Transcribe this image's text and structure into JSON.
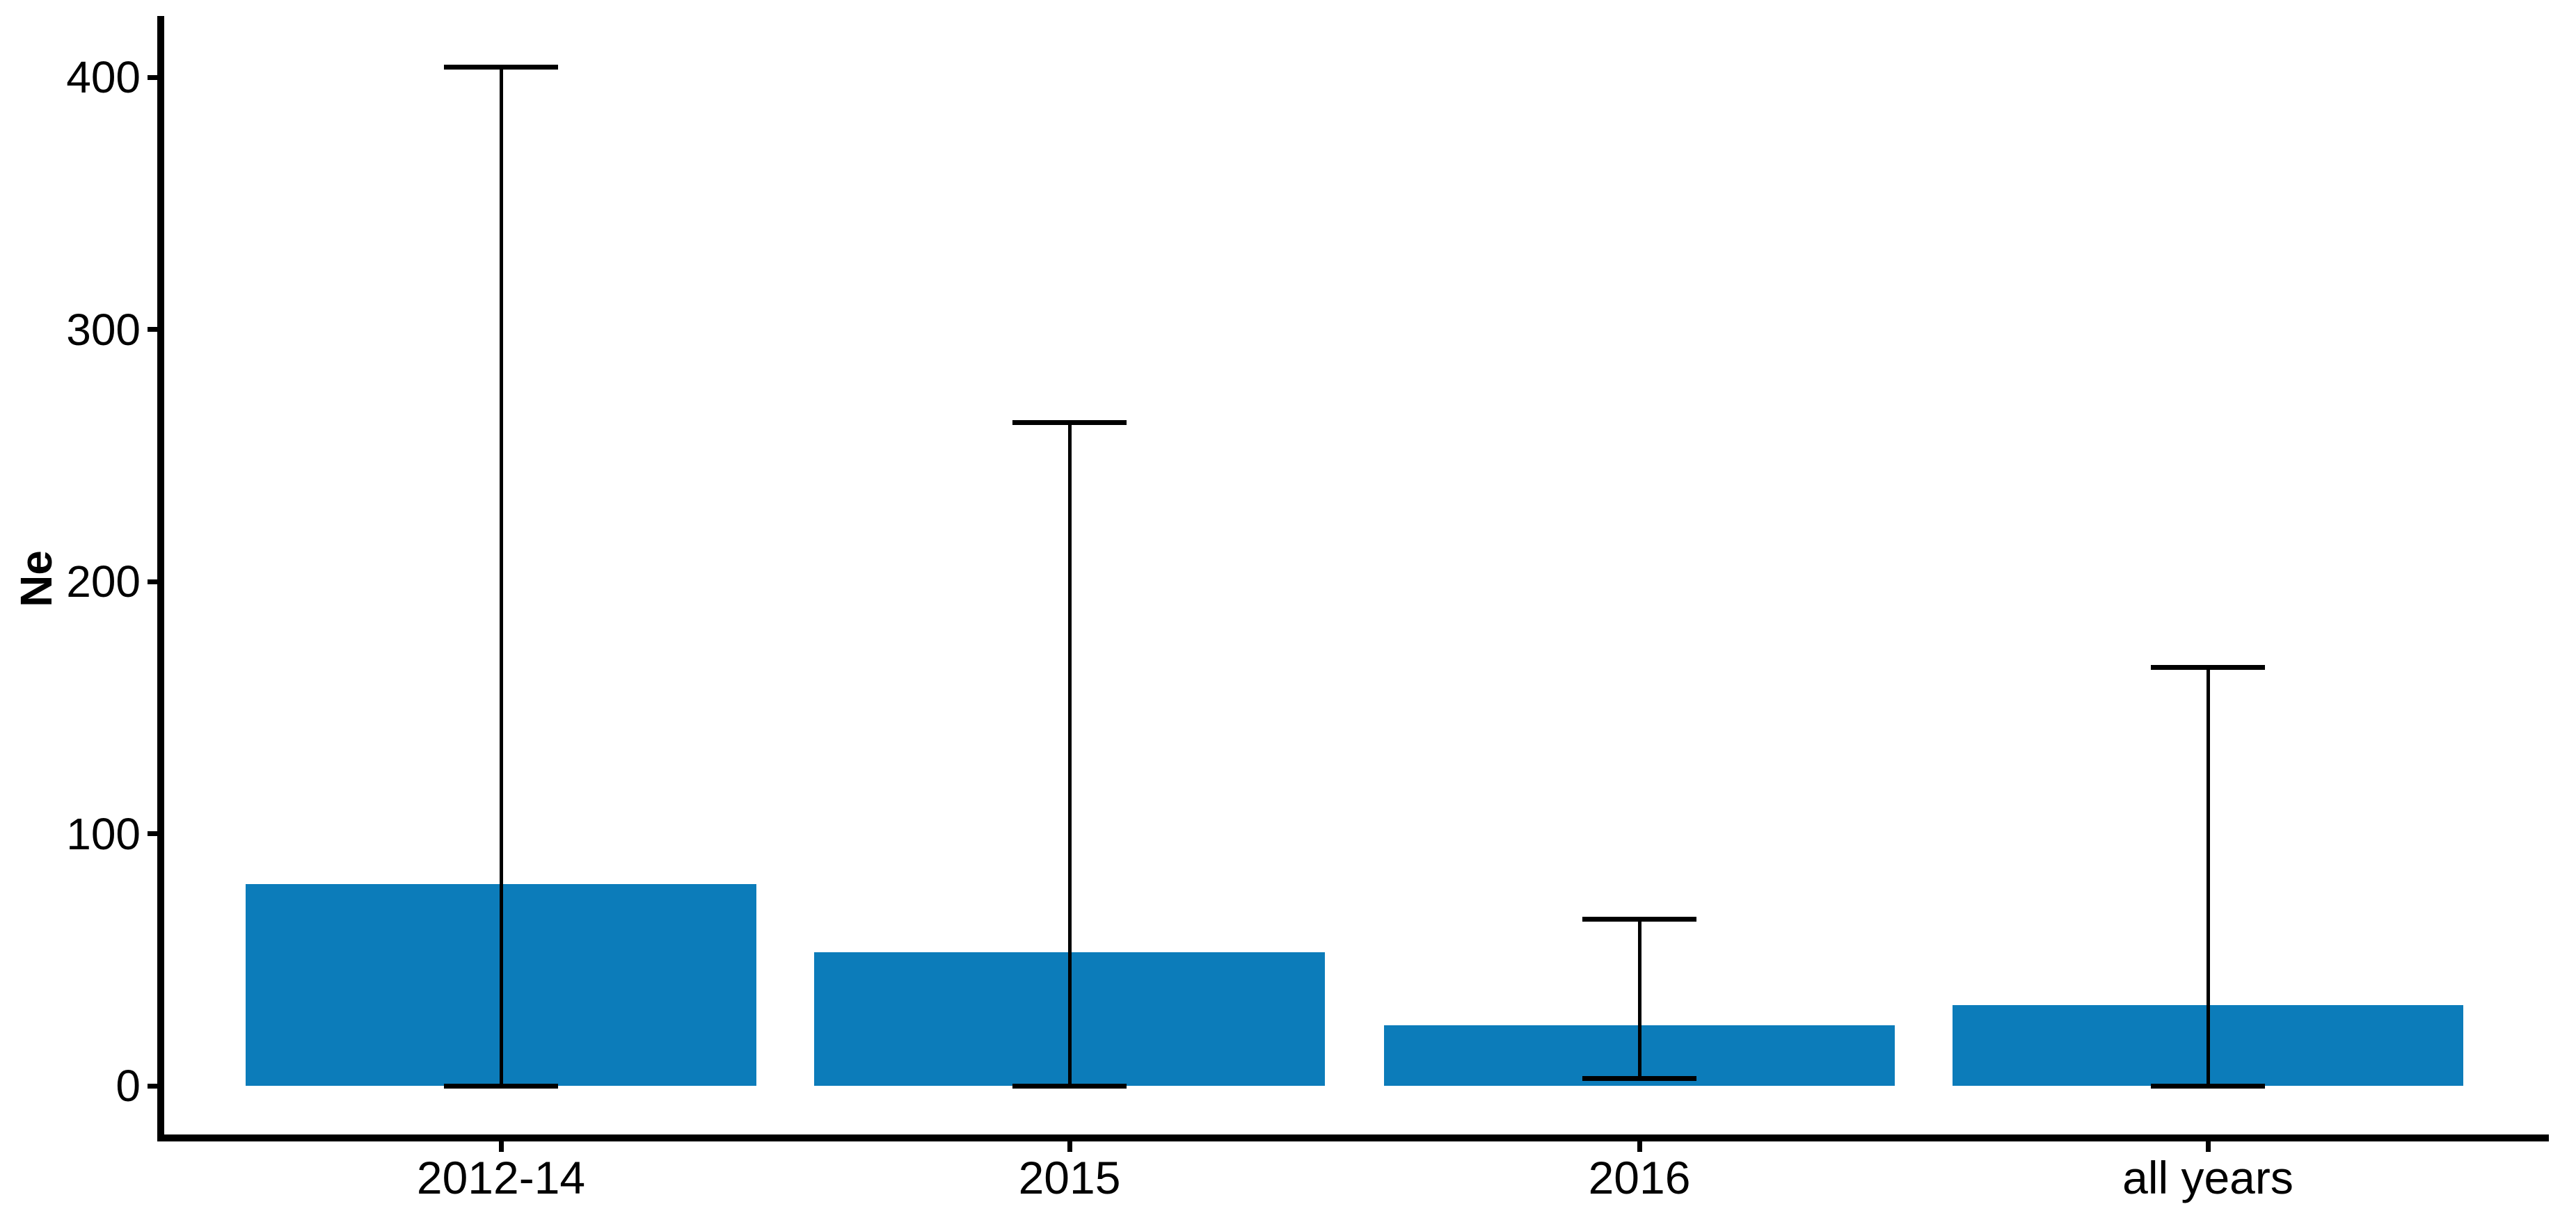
{
  "figure": {
    "background": "#ffffff",
    "text_color": "#000000"
  },
  "chart_data": {
    "type": "bar",
    "title": "",
    "xlabel": "",
    "ylabel": "Ne",
    "categories": [
      "2012-14",
      "2015",
      "2016",
      "all years"
    ],
    "values": [
      80,
      53,
      24,
      32
    ],
    "error_bars": {
      "ymax": [
        404,
        263,
        66,
        166
      ],
      "ymin": [
        0,
        0,
        3,
        0
      ]
    },
    "yticks": [
      0,
      100,
      200,
      300,
      400
    ],
    "ylim": [
      0,
      425
    ],
    "bar_color": "#0c7cba",
    "axis_color": "#000000",
    "grid": false,
    "legend": false
  }
}
